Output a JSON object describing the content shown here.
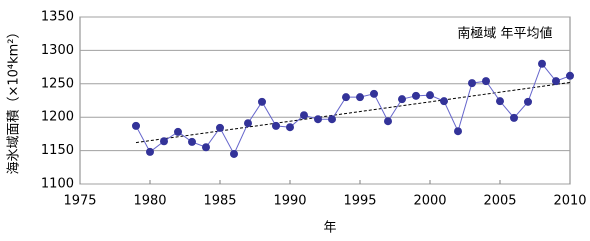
{
  "chart_data": {
    "type": "line",
    "annotation": "南極域 年平均値",
    "x_label": "年",
    "y_label": "海氷域面積（×10⁴km²）",
    "x": [
      1979,
      1980,
      1981,
      1982,
      1983,
      1984,
      1985,
      1986,
      1987,
      1988,
      1989,
      1990,
      1991,
      1992,
      1993,
      1994,
      1995,
      1996,
      1997,
      1998,
      1999,
      2000,
      2001,
      2002,
      2003,
      2004,
      2005,
      2006,
      2007,
      2008,
      2009,
      2010
    ],
    "series": [
      {
        "color": "#333399",
        "values": [
          1187,
          1148,
          1164,
          1178,
          1163,
          1155,
          1184,
          1145,
          1191,
          1223,
          1187,
          1185,
          1203,
          1197,
          1197,
          1230,
          1230,
          1235,
          1194,
          1227,
          1232,
          1233,
          1224,
          1179,
          1251,
          1254,
          1224,
          1199,
          1223,
          1280,
          1254,
          1262
        ]
      }
    ],
    "trend_line": {
      "x": [
        1979,
        2010
      ],
      "values": [
        1162,
        1252
      ],
      "color": "#000000"
    },
    "xlim": [
      1975,
      2010
    ],
    "xticks": [
      1975,
      1980,
      1985,
      1990,
      1995,
      2000,
      2005,
      2010
    ],
    "ylim": [
      1100,
      1350
    ],
    "yticks": [
      1100,
      1150,
      1200,
      1250,
      1300,
      1350
    ],
    "grid": true
  }
}
